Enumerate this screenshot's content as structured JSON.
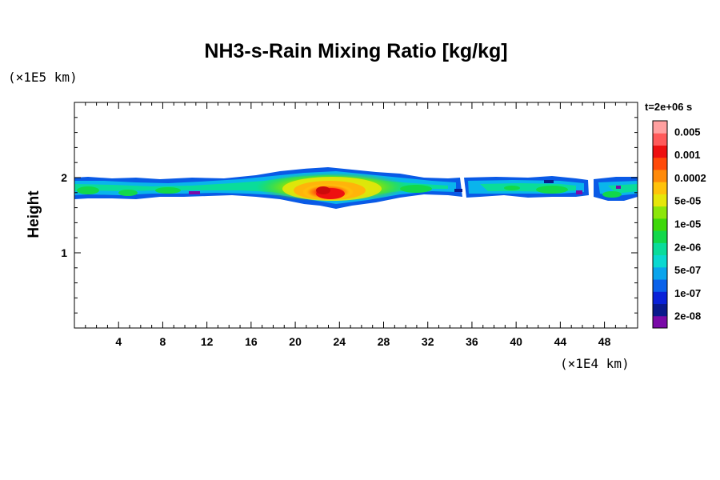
{
  "chart_data": {
    "type": "heatmap",
    "title": "NH3-s-Rain Mixing Ratio [kg/kg]",
    "ylabel": "Height",
    "x_unit": "(×1E4 km)",
    "y_unit": "(×1E5 km)",
    "time_label": "t=2e+06 s",
    "xlim": [
      0,
      51
    ],
    "ylim": [
      0,
      3
    ],
    "x_ticks": [
      4,
      8,
      12,
      16,
      20,
      24,
      28,
      32,
      36,
      40,
      44,
      48
    ],
    "y_ticks": [
      1,
      2
    ],
    "colorbar": {
      "labels": [
        "0.005",
        "0.001",
        "0.0002",
        "5e-05",
        "1e-05",
        "2e-06",
        "5e-07",
        "1e-07",
        "2e-08"
      ],
      "colors_bottom_to_top": [
        "#7a0aa8",
        "#0a1a8c",
        "#0a22d8",
        "#0a62ea",
        "#0aa4ec",
        "#0ad8d0",
        "#0adc9a",
        "#12d84a",
        "#3ed80a",
        "#8ce60a",
        "#e6e60a",
        "#ffc20a",
        "#ff8a0a",
        "#ff4a0a",
        "#ee1010",
        "#ff5a5a",
        "#ffa0a0"
      ]
    },
    "band": {
      "x_range": [
        0,
        51
      ],
      "y_bottom": 1.75,
      "y_top": 1.97,
      "gaps_x": [
        [
          34.1,
          34.5
        ],
        [
          46.1,
          46.9
        ]
      ],
      "peak_x": 23,
      "peak_value": 0.001
    }
  }
}
